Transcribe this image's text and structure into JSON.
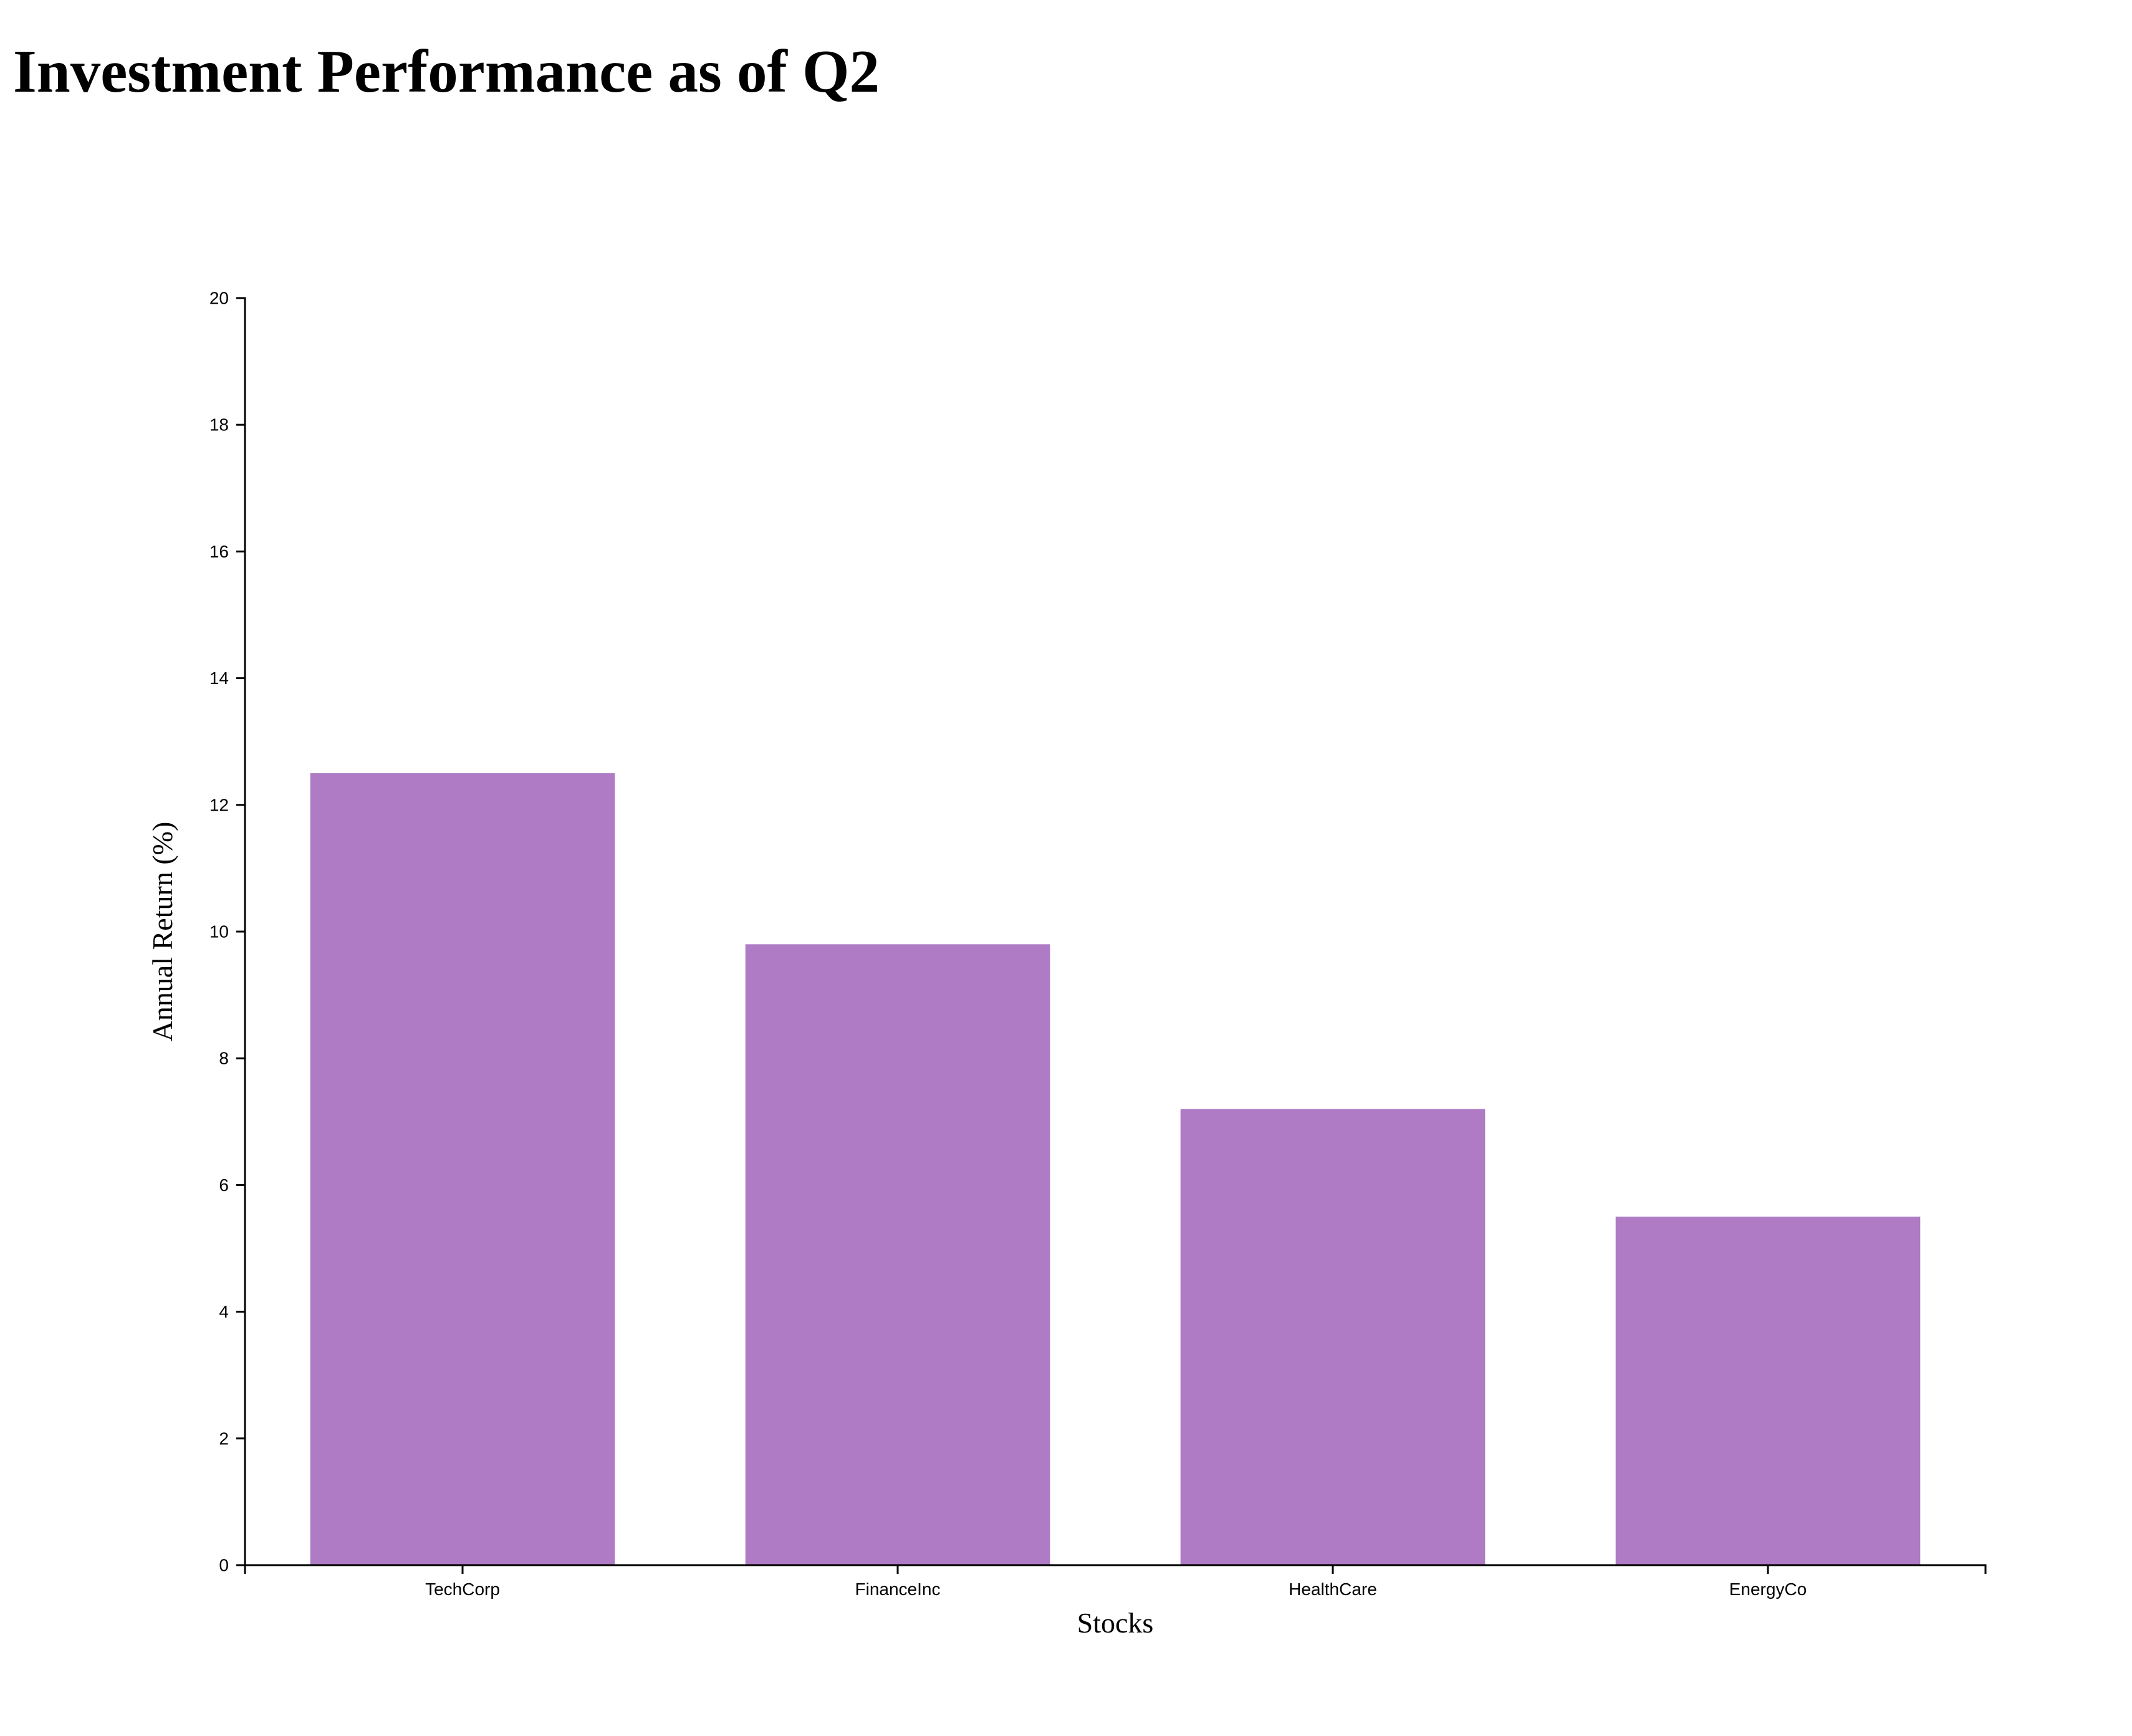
{
  "chart_data": {
    "type": "bar",
    "title": "Investment Performance as of Q2",
    "xlabel": "Stocks",
    "ylabel": "Annual Return (%)",
    "categories": [
      "TechCorp",
      "FinanceInc",
      "HealthCare",
      "EnergyCo"
    ],
    "values": [
      12.5,
      9.8,
      7.2,
      5.5
    ],
    "ylim": [
      0,
      20
    ],
    "yticks": [
      0,
      2,
      4,
      6,
      8,
      10,
      12,
      14,
      16,
      18,
      20
    ],
    "bar_color": "#ae7bc4",
    "axis_color": "#000000",
    "grid": false,
    "legend": "none"
  }
}
